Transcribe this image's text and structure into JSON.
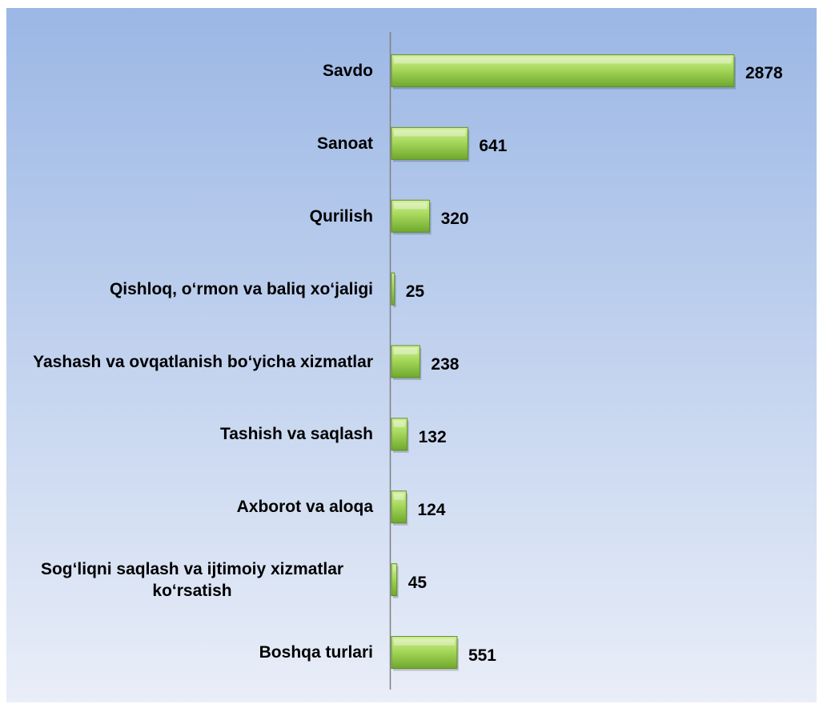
{
  "chart_data": {
    "type": "bar",
    "orientation": "horizontal",
    "categories": [
      "Savdo",
      "Sanoat",
      "Qurilish",
      "Qishloq, o‘rmon va baliq xo‘jaligi",
      "Yashash va ovqatlanish bo‘yicha xizmatlar",
      "Tashish va saqlash",
      "Axborot va aloqa",
      "Sog‘liqni saqlash va ijtimoiy xizmatlar ko‘rsatish",
      "Boshqa turlari"
    ],
    "values": [
      2878,
      641,
      320,
      25,
      238,
      132,
      124,
      45,
      551
    ],
    "color": "#8cc63f"
  }
}
